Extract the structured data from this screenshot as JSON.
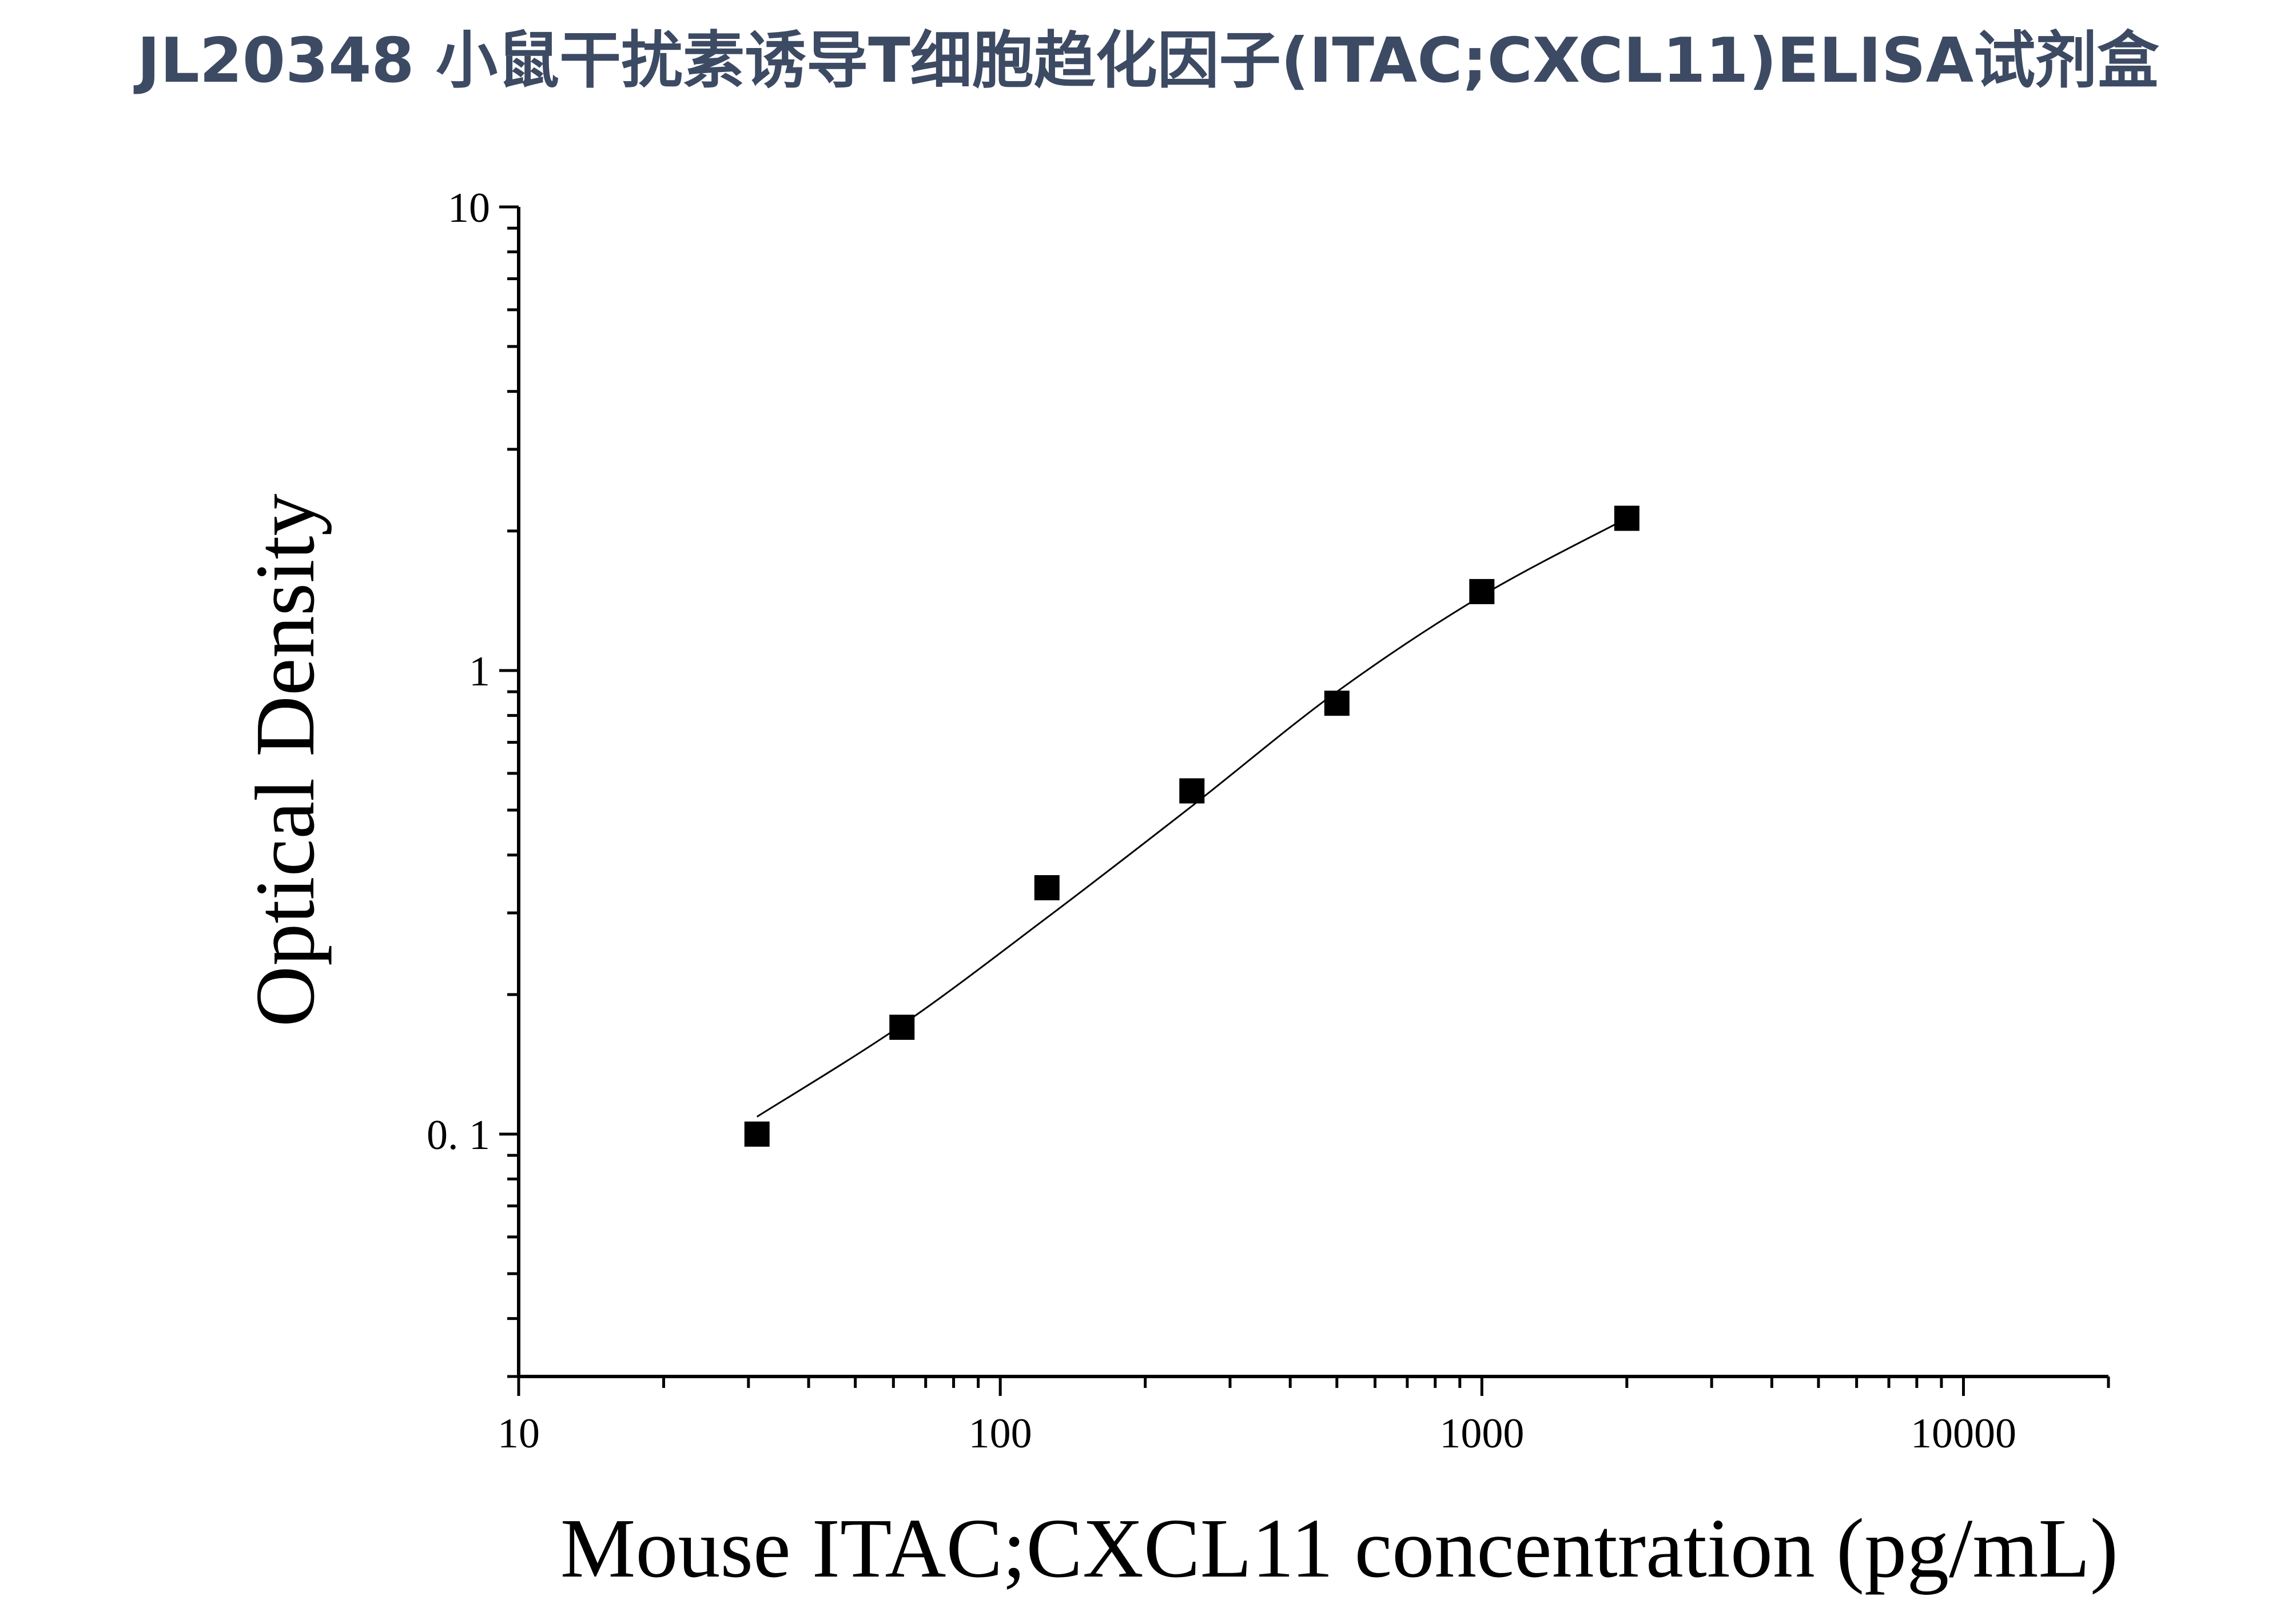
{
  "title": "JL20348 小鼠干扰素诱导T细胞趋化因子(ITAC;CXCL11)ELISA试剂盒",
  "colors": {
    "title": "#3d4a63",
    "axis": "#000000",
    "marker": "#000000",
    "curve": "#000000",
    "background": "#ffffff"
  },
  "chart_data": {
    "type": "scatter",
    "title": "",
    "xlabel": "Mouse ITAC;CXCL11 concentration (pg/mL)",
    "ylabel": "Optical Density",
    "xscale": "log",
    "yscale": "log",
    "xlim": [
      10,
      20000
    ],
    "ylim": [
      0.03,
      10
    ],
    "x_ticks": [
      {
        "value": 10,
        "label": "10"
      },
      {
        "value": 100,
        "label": "100"
      },
      {
        "value": 1000,
        "label": "1000"
      },
      {
        "value": 10000,
        "label": "10000"
      }
    ],
    "y_ticks": [
      {
        "value": 0.1,
        "label": "0. 1"
      },
      {
        "value": 1,
        "label": "1"
      },
      {
        "value": 10,
        "label": "10"
      }
    ],
    "grid": false,
    "legend": "none",
    "series": [
      {
        "marker": "square",
        "x": [
          31.25,
          62.5,
          125,
          250,
          500,
          1000,
          2000
        ],
        "y": [
          0.1,
          0.17,
          0.34,
          0.55,
          0.85,
          1.48,
          2.13
        ]
      }
    ],
    "fit_curve": {
      "x": [
        31.25,
        62.5,
        125,
        250,
        500,
        1000,
        2000
      ],
      "y": [
        0.109,
        0.172,
        0.293,
        0.51,
        0.9,
        1.45,
        2.13
      ]
    }
  }
}
